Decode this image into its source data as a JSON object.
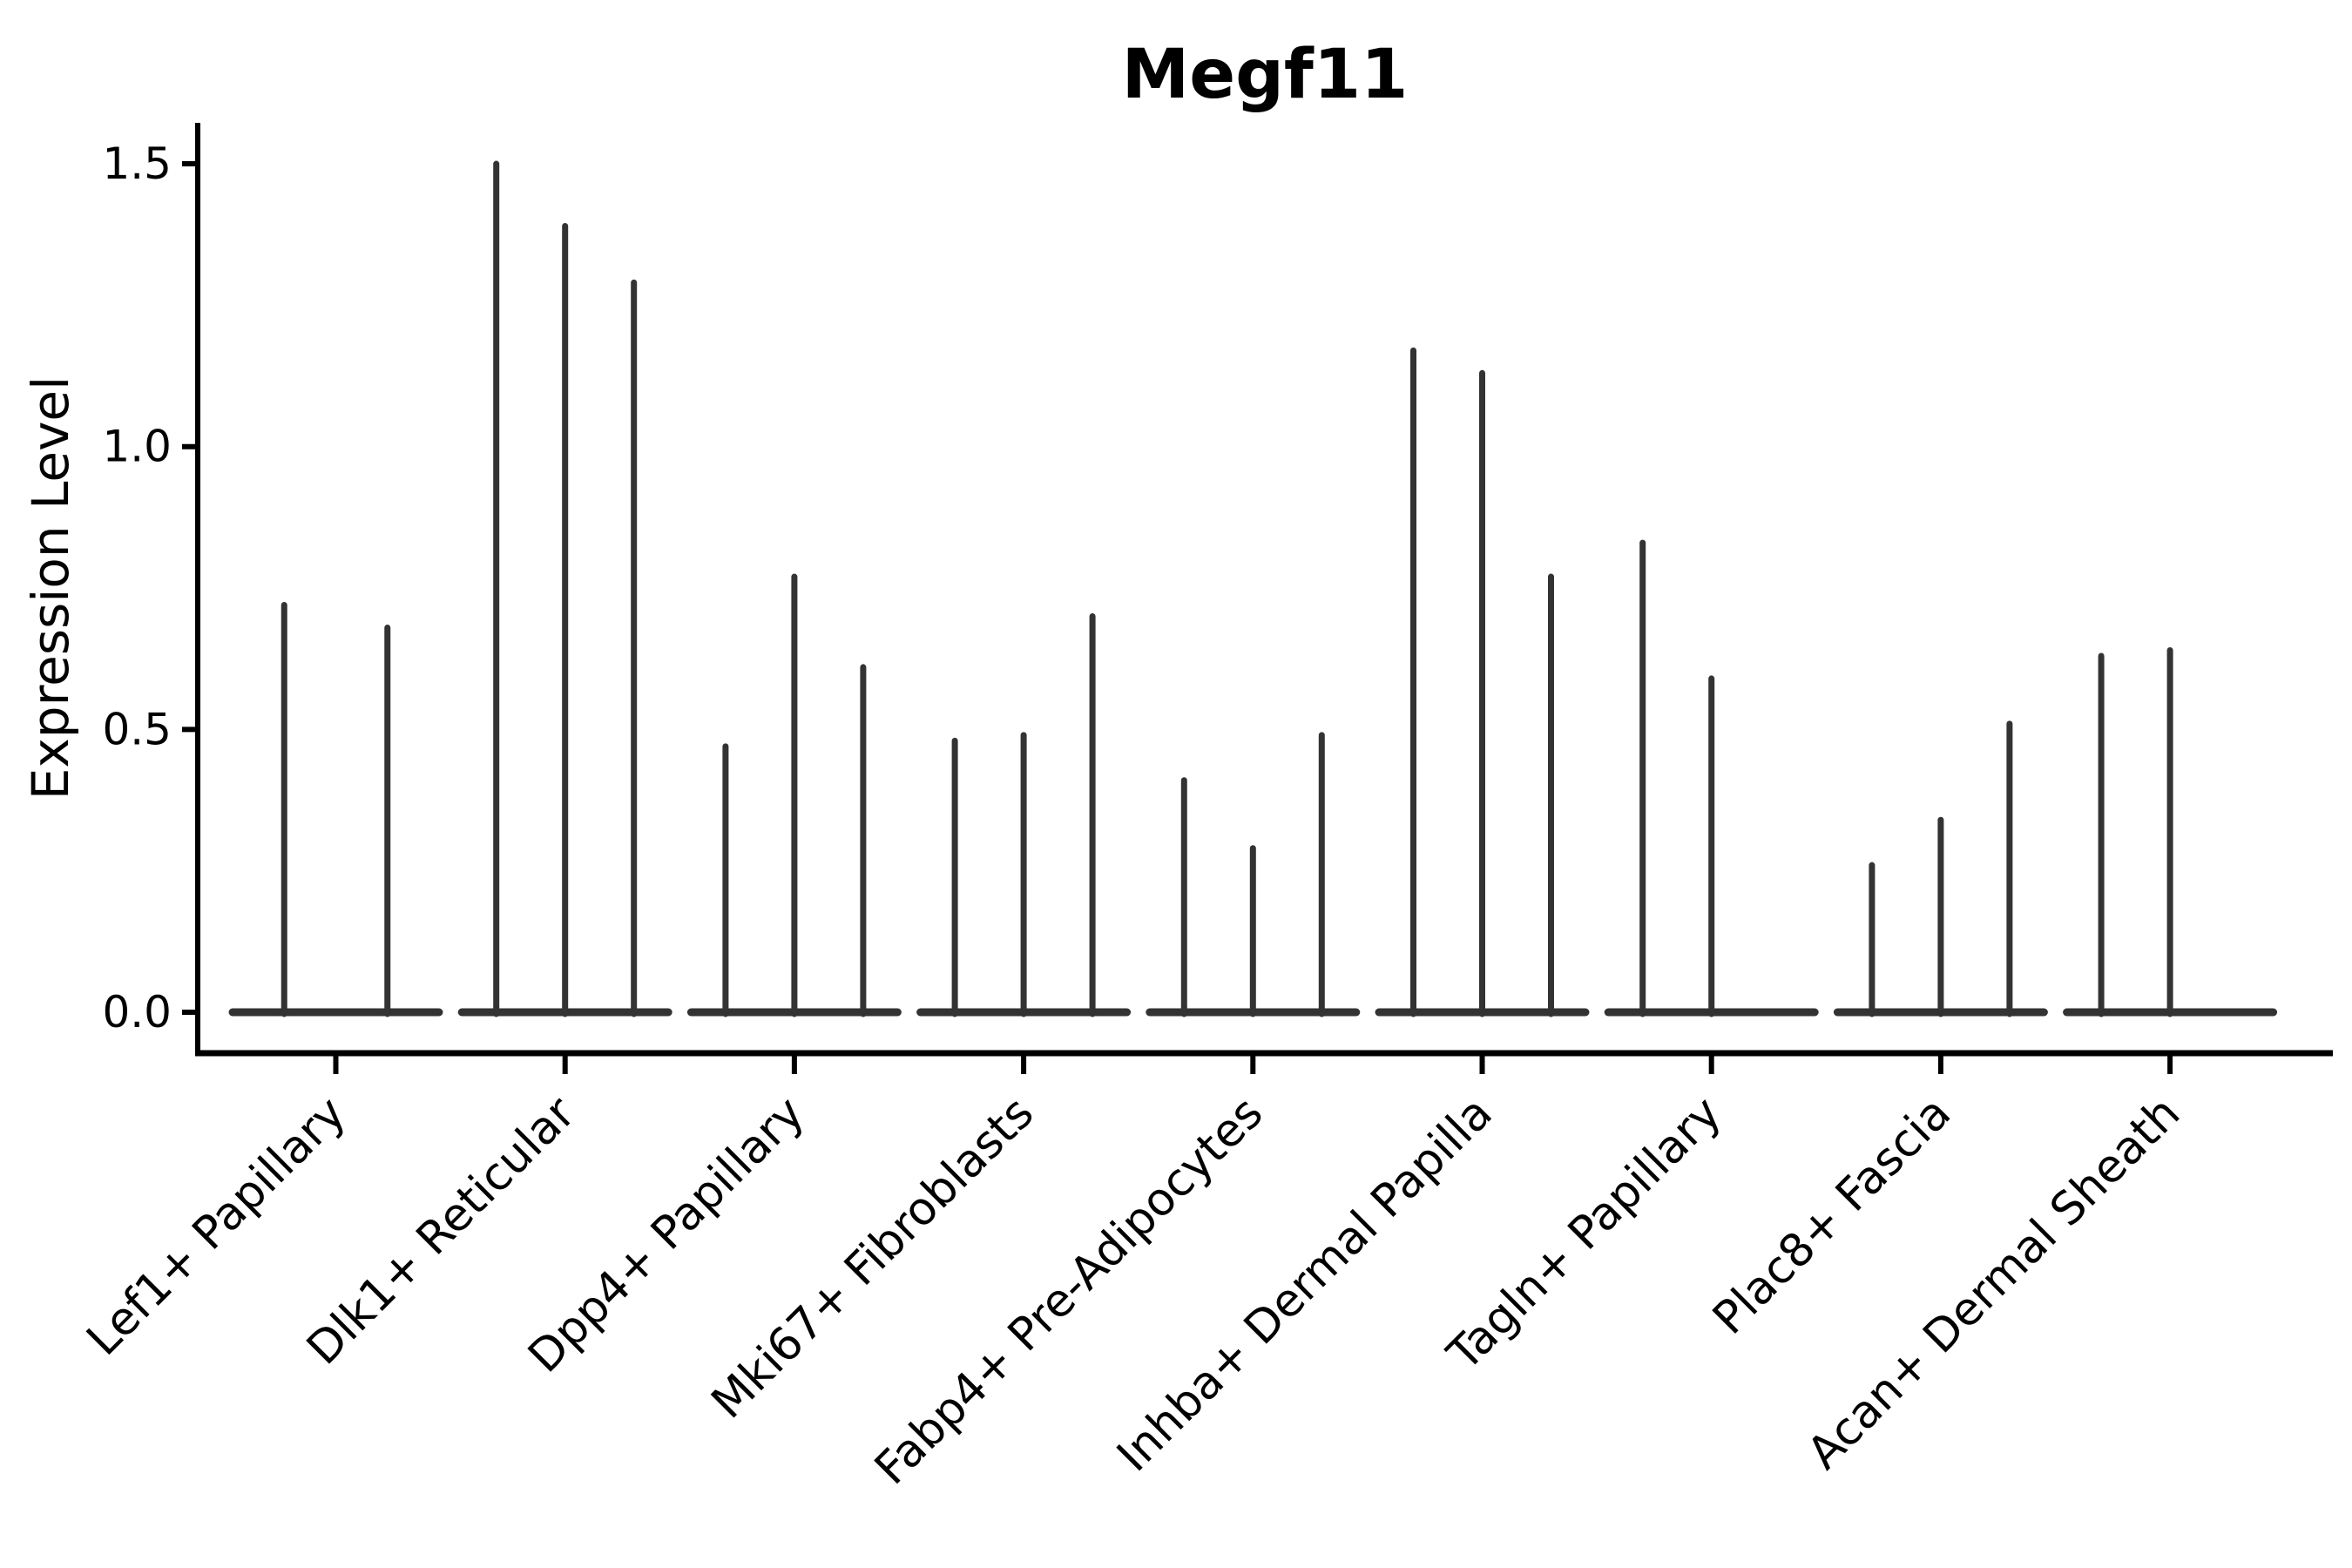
{
  "chart_data": {
    "type": "violin",
    "title": "Megf11",
    "xlabel": "",
    "ylabel": "Expression Level",
    "ylim": [
      -0.07,
      1.57
    ],
    "yticks": [
      0.0,
      0.5,
      1.0,
      1.5
    ],
    "ytick_labels": [
      "0.0",
      "0.5",
      "1.0",
      "1.5"
    ],
    "grid": false,
    "legend_position": "none",
    "categories": [
      "Lef1+ Papillary",
      "Dlk1+ Reticular",
      "Dpp4+ Papillary",
      "Mki67+ Fibroblasts",
      "Fabp4+ Pre-Adipocytes",
      "Inhba+ Dermal Papilla",
      "Tagln+ Papillary",
      "Plac8+ Fascia",
      "Acan+ Dermal Sheath"
    ],
    "groups": [
      {
        "label": "Lef1+ Papillary",
        "violin_max_expression": [
          0.72,
          0.68
        ]
      },
      {
        "label": "Dlk1+ Reticular",
        "violin_max_expression": [
          1.5,
          1.39,
          1.29
        ]
      },
      {
        "label": "Dpp4+ Papillary",
        "violin_max_expression": [
          0.47,
          0.77,
          0.61
        ]
      },
      {
        "label": "Mki67+ Fibroblasts",
        "violin_max_expression": [
          0.48,
          0.49,
          0.7
        ]
      },
      {
        "label": "Fabp4+ Pre-Adipocytes",
        "violin_max_expression": [
          0.41,
          0.29,
          0.49
        ]
      },
      {
        "label": "Inhba+ Dermal Papilla",
        "violin_max_expression": [
          1.17,
          1.13,
          0.77
        ]
      },
      {
        "label": "Tagln+ Papillary",
        "violin_max_expression": [
          0.83,
          0.59,
          0.0
        ]
      },
      {
        "label": "Plac8+ Fascia",
        "violin_max_expression": [
          0.26,
          0.34,
          0.51
        ]
      },
      {
        "label": "Acan+ Dermal Sheath",
        "violin_max_expression": [
          0.63,
          0.64,
          0.0
        ]
      }
    ],
    "colors": {
      "violin": "#333333",
      "axis": "#000000",
      "background": "#ffffff"
    }
  }
}
